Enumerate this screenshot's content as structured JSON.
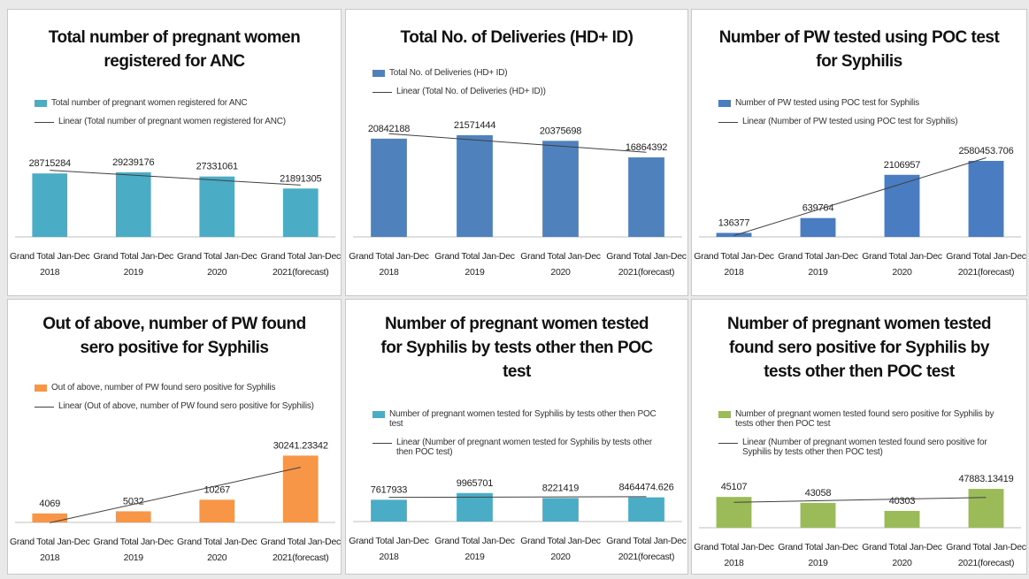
{
  "chart_data": [
    {
      "type": "bar",
      "title": "Total number of pregnant women registered for ANC",
      "categories": [
        "Grand Total Jan-Dec 2018",
        "Grand Total Jan-Dec 2019",
        "Grand Total Jan-Dec 2020",
        "Grand Total Jan-Dec 2021(forecast)"
      ],
      "series": [
        {
          "name": "Total number of pregnant women registered for ANC",
          "color": "#4bacc6",
          "values": [
            28715284,
            29239176,
            27331061,
            21891305
          ]
        }
      ],
      "trendline": {
        "type": "linear",
        "name": "Linear (Total number of pregnant women registered for ANC)",
        "color": "#404040"
      },
      "ylim": [
        0,
        48000000
      ]
    },
    {
      "type": "bar",
      "title": "Total No. of Deliveries (HD+ ID)",
      "categories": [
        "Grand Total Jan-Dec 2018",
        "Grand Total Jan-Dec 2019",
        "Grand Total Jan-Dec 2020",
        "Grand Total Jan-Dec 2021(forecast)"
      ],
      "series": [
        {
          "name": "Total No. of Deliveries (HD+ ID)",
          "color": "#4f81bd",
          "values": [
            20842188,
            21571444,
            20375698,
            16864392
          ]
        }
      ],
      "trendline": {
        "type": "linear",
        "name": "Linear (Total No. of Deliveries (HD+ ID))",
        "color": "#404040"
      },
      "ylim": [
        0,
        22500000
      ]
    },
    {
      "type": "bar",
      "title": "Number of PW tested using POC test for Syphilis",
      "categories": [
        "Grand Total Jan-Dec 2018",
        "Grand Total Jan-Dec 2019",
        "Grand Total Jan-Dec 2020",
        "Grand Total Jan-Dec 2021(forecast)"
      ],
      "series": [
        {
          "name": "Number of PW tested using POC test for Syphilis",
          "color": "#4a7cc2",
          "values": [
            136377,
            639764,
            2106957,
            2580453.706
          ]
        }
      ],
      "trendline": {
        "type": "linear",
        "name": "Linear (Number of PW tested using POC test for Syphilis)",
        "color": "#404040"
      },
      "ylim": [
        0,
        3600000
      ]
    },
    {
      "type": "bar",
      "title": "Out of above, number of PW found sero positive for Syphilis",
      "categories": [
        "Grand Total Jan-Dec 2018",
        "Grand Total Jan-Dec 2019",
        "Grand Total Jan-Dec 2020",
        "Grand Total Jan-Dec 2021(forecast)"
      ],
      "series": [
        {
          "name": "Out of above, number of PW found sero positive for Syphilis",
          "color": "#f79646",
          "values": [
            4069,
            5032,
            10267,
            30241.23342
          ]
        }
      ],
      "trendline": {
        "type": "linear",
        "name": "Linear (Out of above, number of PW found sero positive for Syphilis)",
        "color": "#404040"
      },
      "ylim": [
        0,
        44000
      ]
    },
    {
      "type": "bar",
      "title": "Number of pregnant women tested for Syphilis by tests other then POC test",
      "categories": [
        "Grand Total Jan-Dec 2018",
        "Grand Total Jan-Dec 2019",
        "Grand Total Jan-Dec 2020",
        "Grand Total Jan-Dec 2021(forecast)"
      ],
      "series": [
        {
          "name": "Number of pregnant women tested for Syphilis by tests other then POC test",
          "color": "#4bacc6",
          "values": [
            7617933,
            9965701,
            8221419,
            8464474.626
          ]
        }
      ],
      "trendline": {
        "type": "linear",
        "name": "Linear (Number of pregnant women tested for Syphilis by tests other then POC test)",
        "color": "#404040"
      },
      "ylim": [
        0,
        34000000
      ]
    },
    {
      "type": "bar",
      "title": "Number of pregnant women tested found sero positive for Syphilis by tests other then POC test",
      "categories": [
        "Grand Total Jan-Dec 2018",
        "Grand Total Jan-Dec 2019",
        "Grand Total Jan-Dec 2020",
        "Grand Total Jan-Dec 2021(forecast)"
      ],
      "series": [
        {
          "name": "Number of pregnant women tested found sero positive for Syphilis by tests other then POC test",
          "color": "#9bbb59",
          "values": [
            45107,
            43058,
            40303,
            47883.13419
          ]
        }
      ],
      "trendline": {
        "type": "linear",
        "name": "Linear (Number of pregnant women tested found sero positive for Syphilis by tests other then POC test)",
        "color": "#404040"
      },
      "ylim": [
        34500,
        68000
      ]
    }
  ]
}
